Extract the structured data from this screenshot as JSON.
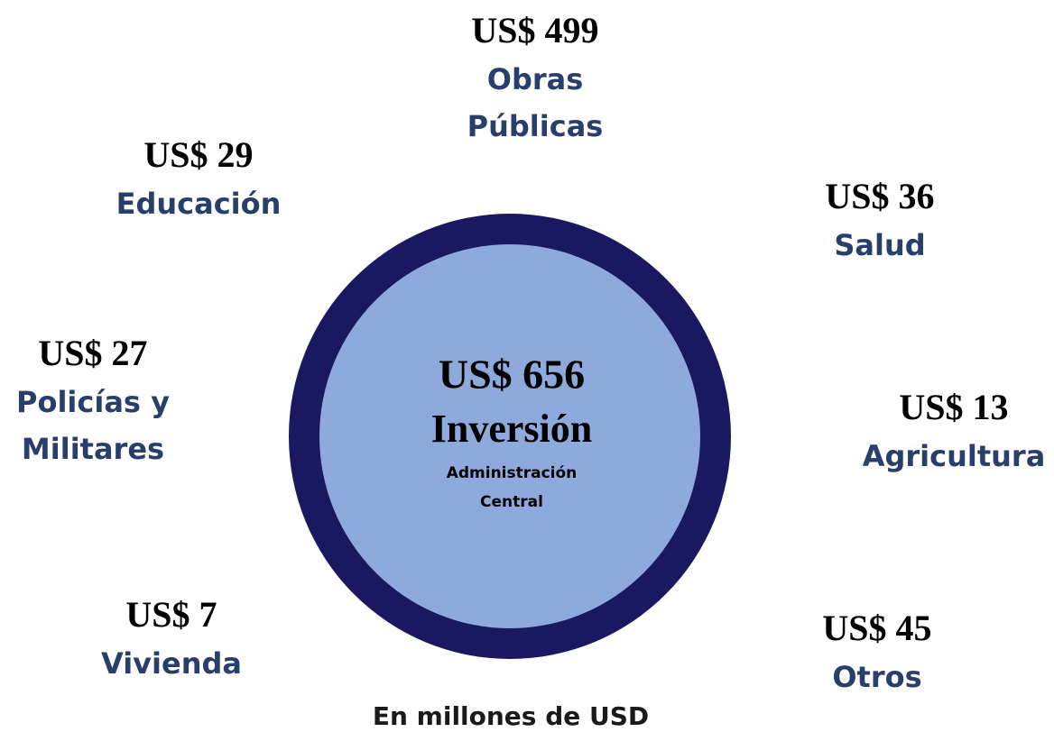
{
  "center": {
    "amount": "US$ 656",
    "title": "Inversión",
    "subtitle": [
      "Administración",
      "Central"
    ]
  },
  "items": [
    {
      "amount": "US$ 499",
      "label": [
        "Obras",
        "Públicas"
      ]
    },
    {
      "amount": "US$ 29",
      "label": [
        "Educación"
      ]
    },
    {
      "amount": "US$ 36",
      "label": [
        "Salud"
      ]
    },
    {
      "amount": "US$ 27",
      "label": [
        "Policías y",
        "Militares"
      ]
    },
    {
      "amount": "US$ 13",
      "label": [
        "Agricultura"
      ]
    },
    {
      "amount": "US$ 7",
      "label": [
        "Vivienda"
      ]
    },
    {
      "amount": "US$ 45",
      "label": [
        "Otros"
      ]
    }
  ],
  "footer": "En millones de USD"
}
